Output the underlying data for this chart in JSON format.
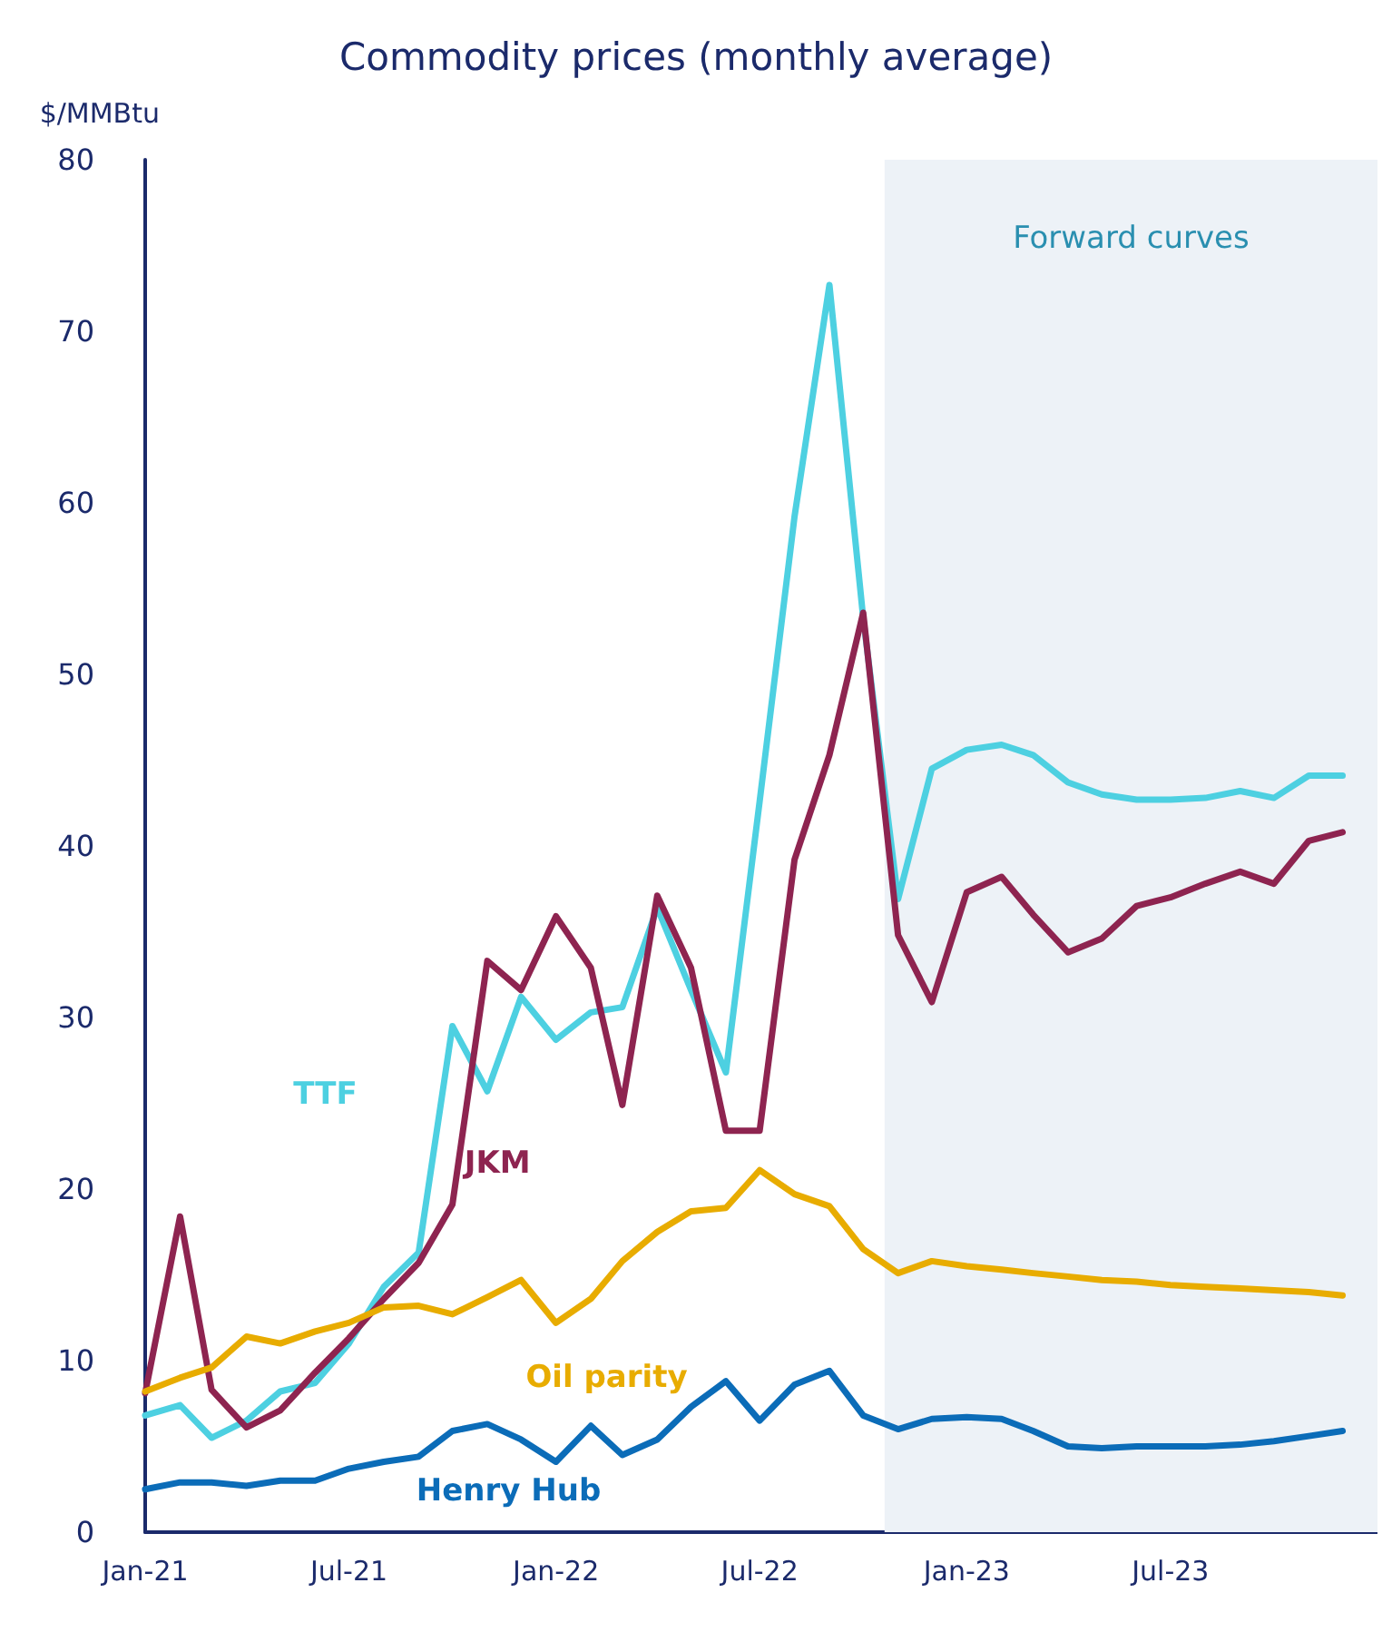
{
  "chart_data": {
    "type": "line",
    "title": "Commodity prices (monthly average)",
    "ylabel": "$/MMBtu",
    "x": [
      "2021-01",
      "2021-02",
      "2021-03",
      "2021-04",
      "2021-05",
      "2021-06",
      "2021-07",
      "2021-08",
      "2021-09",
      "2021-10",
      "2021-11",
      "2021-12",
      "2022-01",
      "2022-02",
      "2022-03",
      "2022-04",
      "2022-05",
      "2022-06",
      "2022-07",
      "2022-08",
      "2022-09",
      "2022-10",
      "2022-11",
      "2022-12",
      "2023-01",
      "2023-02",
      "2023-03",
      "2023-04",
      "2023-05",
      "2023-06",
      "2023-07",
      "2023-08",
      "2023-09",
      "2023-10",
      "2023-11",
      "2023-12"
    ],
    "xlim": [
      "2021-01",
      "2024-01"
    ],
    "xticks": [
      {
        "value": "2021-01",
        "label": "Jan-21"
      },
      {
        "value": "2021-07",
        "label": "Jul-21"
      },
      {
        "value": "2022-01",
        "label": "Jan-22"
      },
      {
        "value": "2022-07",
        "label": "Jul-22"
      },
      {
        "value": "2023-01",
        "label": "Jan-23"
      },
      {
        "value": "2023-07",
        "label": "Jul-23"
      }
    ],
    "ylim": [
      0,
      80
    ],
    "yticks": [
      0,
      10,
      20,
      30,
      40,
      50,
      60,
      70,
      80
    ],
    "series": [
      {
        "name": "TTF",
        "color": "#4dd0e1",
        "values": [
          6.8,
          7.4,
          5.5,
          6.5,
          8.2,
          8.7,
          11.0,
          14.3,
          16.3,
          29.5,
          25.7,
          31.2,
          28.7,
          30.3,
          30.6,
          36.4,
          31.6,
          26.8,
          42.6,
          59.2,
          72.7,
          53.3,
          36.9,
          44.5,
          45.6,
          45.9,
          45.3,
          43.7,
          43.0,
          42.7,
          42.7,
          42.8,
          43.2,
          42.8,
          44.1,
          44.1
        ]
      },
      {
        "name": "JKM",
        "color": "#8e2450",
        "values": [
          8.1,
          18.4,
          8.3,
          6.1,
          7.1,
          9.3,
          11.3,
          13.6,
          15.7,
          19.1,
          33.3,
          31.6,
          35.9,
          32.9,
          24.9,
          37.1,
          32.9,
          23.4,
          23.4,
          39.2,
          45.3,
          53.6,
          34.8,
          30.9,
          37.3,
          38.2,
          36.0,
          33.8,
          34.6,
          36.5,
          37.0,
          37.8,
          38.5,
          37.8,
          40.3,
          40.8
        ]
      },
      {
        "name": "Oil parity",
        "color": "#e8ac00",
        "values": [
          8.2,
          9.0,
          9.6,
          11.4,
          11.0,
          11.7,
          12.2,
          13.1,
          13.2,
          12.7,
          13.7,
          14.7,
          12.2,
          13.6,
          15.8,
          17.5,
          18.7,
          18.9,
          21.1,
          19.7,
          19.0,
          16.5,
          15.1,
          15.8,
          15.5,
          15.3,
          15.1,
          14.9,
          14.7,
          14.6,
          14.4,
          14.3,
          14.2,
          14.1,
          14.0,
          13.8
        ]
      },
      {
        "name": "Henry Hub",
        "color": "#0b6cb8",
        "values": [
          2.5,
          2.9,
          2.9,
          2.7,
          3.0,
          3.0,
          3.7,
          4.1,
          4.4,
          5.9,
          6.3,
          5.4,
          4.1,
          6.2,
          4.5,
          5.4,
          7.3,
          8.8,
          6.5,
          8.6,
          9.4,
          6.8,
          6.0,
          6.6,
          6.7,
          6.6,
          5.9,
          5.0,
          4.9,
          5.0,
          5.0,
          5.0,
          5.1,
          5.3,
          5.6,
          5.9
        ]
      }
    ],
    "bands": [
      {
        "axis": "x",
        "from": "2022-10-20",
        "to": "2024-01",
        "label": "Forward curves",
        "color": "#edf2f7"
      }
    ],
    "grid": false,
    "legend": false,
    "marker": "none",
    "line_style": "solid"
  }
}
